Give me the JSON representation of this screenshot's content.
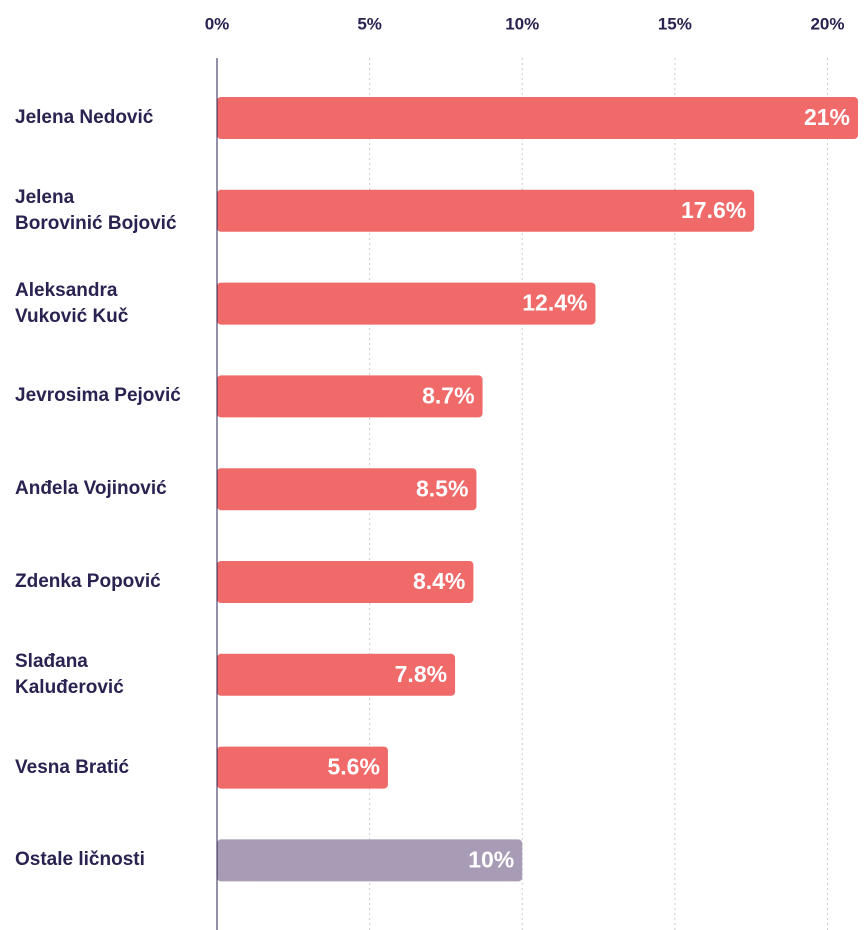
{
  "chart_data": {
    "type": "hbar",
    "categories": [
      "Jelena Nedović",
      "Jelena\nBorovinić Bojović",
      "Aleksandra\nVuković Kuč",
      "Jevrosima Pejović",
      "Anđela Vojinović",
      "Zdenka Popović",
      "Slađana\nKaluđerović",
      "Vesna Bratić",
      "Ostale ličnosti"
    ],
    "values": [
      21,
      17.6,
      12.4,
      8.7,
      8.5,
      8.4,
      7.8,
      5.6,
      10
    ],
    "value_labels": [
      "21%",
      "17.6%",
      "12.4%",
      "8.7%",
      "8.5%",
      "8.4%",
      "7.8%",
      "5.6%",
      "10%"
    ],
    "colors": [
      "#f06a6a",
      "#f06a6a",
      "#f06a6a",
      "#f06a6a",
      "#f06a6a",
      "#f06a6a",
      "#f06a6a",
      "#f06a6a",
      "#a89bb5"
    ],
    "xlim": [
      0,
      21
    ],
    "xticks": [
      {
        "value": 0,
        "label": "0%"
      },
      {
        "value": 5,
        "label": "5%"
      },
      {
        "value": 10,
        "label": "10%"
      },
      {
        "value": 15,
        "label": "15%"
      },
      {
        "value": 20,
        "label": "20%"
      }
    ],
    "grid": true
  }
}
